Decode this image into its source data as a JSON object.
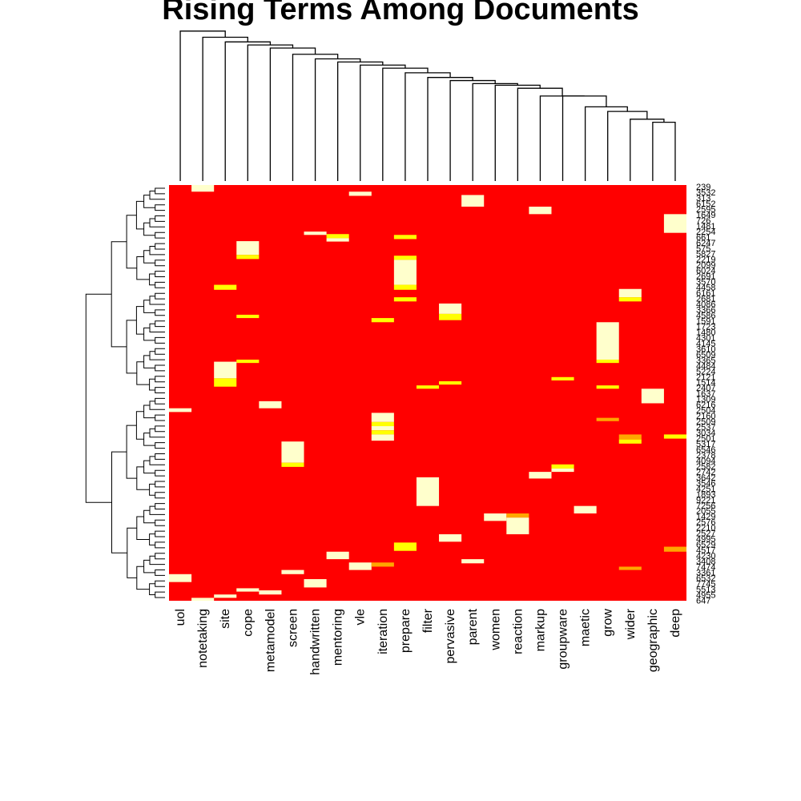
{
  "title": "Rising Terms Among Documents",
  "chart_data": {
    "type": "heatmap",
    "title": "Rising Terms Among Documents",
    "colors": {
      "low": "#ff0000",
      "mid_low": "#ff4500",
      "mid": "#ffa500",
      "high": "#ffff00",
      "max": "#ffffcc"
    },
    "columns": [
      "uol",
      "notetaking",
      "site",
      "cope",
      "metamodel",
      "screen",
      "handwritten",
      "mentoring",
      "vle",
      "iteration",
      "prepare",
      "filter",
      "pervasive",
      "parent",
      "women",
      "reaction",
      "markup",
      "groupware",
      "maetic",
      "grow",
      "wider",
      "geographic",
      "deep"
    ],
    "row_labels": [
      "239",
      "3532",
      "313",
      "6152",
      "2595",
      "1649",
      "726",
      "1481",
      "2254",
      "661",
      "6247",
      "575",
      "5827",
      "2219",
      "2099",
      "6024",
      "2691",
      "3570",
      "4458",
      "6161",
      "2681",
      "4086",
      "3366",
      "4586",
      "1591",
      "1723",
      "1480",
      "4301",
      "4145",
      "3610",
      "6509",
      "3365",
      "4484",
      "5224",
      "2121",
      "1514",
      "2407",
      "1637",
      "1309",
      "6216",
      "2504",
      "2160",
      "2509",
      "2537",
      "3034",
      "2501",
      "5317",
      "6546",
      "2378",
      "4094",
      "2582",
      "2742",
      "3642",
      "3546",
      "4251",
      "1893",
      "9221",
      "7256",
      "2055",
      "1429",
      "2576",
      "2210",
      "2527",
      "4995",
      "6529",
      "4517",
      "4230",
      "3408",
      "7474",
      "3361",
      "6532",
      "7745",
      "5513",
      "4955",
      "647"
    ],
    "background_value": 0,
    "cells": [
      {
        "column": "notetaking",
        "from": 0.0,
        "to": 0.016,
        "value": 4
      },
      {
        "column": "vle",
        "from": 0.016,
        "to": 0.026,
        "value": 4
      },
      {
        "column": "parent",
        "from": 0.024,
        "to": 0.052,
        "value": 4
      },
      {
        "column": "markup",
        "from": 0.052,
        "to": 0.07,
        "value": 4
      },
      {
        "column": "deep",
        "from": 0.07,
        "to": 0.115,
        "value": 4
      },
      {
        "column": "handwritten",
        "from": 0.112,
        "to": 0.12,
        "value": 4
      },
      {
        "column": "mentoring",
        "from": 0.118,
        "to": 0.128,
        "value": 3
      },
      {
        "column": "mentoring",
        "from": 0.128,
        "to": 0.136,
        "value": 4
      },
      {
        "column": "prepare",
        "from": 0.12,
        "to": 0.13,
        "value": 3
      },
      {
        "column": "cope",
        "from": 0.135,
        "to": 0.168,
        "value": 4
      },
      {
        "column": "cope",
        "from": 0.168,
        "to": 0.178,
        "value": 3
      },
      {
        "column": "prepare",
        "from": 0.17,
        "to": 0.18,
        "value": 3
      },
      {
        "column": "prepare",
        "from": 0.18,
        "to": 0.24,
        "value": 4
      },
      {
        "column": "prepare",
        "from": 0.24,
        "to": 0.252,
        "value": 3
      },
      {
        "column": "site",
        "from": 0.24,
        "to": 0.252,
        "value": 3
      },
      {
        "column": "wider",
        "from": 0.25,
        "to": 0.27,
        "value": 4
      },
      {
        "column": "wider",
        "from": 0.27,
        "to": 0.28,
        "value": 3
      },
      {
        "column": "prepare",
        "from": 0.27,
        "to": 0.28,
        "value": 3
      },
      {
        "column": "pervasive",
        "from": 0.285,
        "to": 0.31,
        "value": 4
      },
      {
        "column": "pervasive",
        "from": 0.31,
        "to": 0.325,
        "value": 3
      },
      {
        "column": "cope",
        "from": 0.312,
        "to": 0.32,
        "value": 3
      },
      {
        "column": "iteration",
        "from": 0.32,
        "to": 0.33,
        "value": 3
      },
      {
        "column": "grow",
        "from": 0.33,
        "to": 0.42,
        "value": 4
      },
      {
        "column": "grow",
        "from": 0.42,
        "to": 0.428,
        "value": 3
      },
      {
        "column": "cope",
        "from": 0.42,
        "to": 0.428,
        "value": 3
      },
      {
        "column": "site",
        "from": 0.425,
        "to": 0.465,
        "value": 4
      },
      {
        "column": "site",
        "from": 0.465,
        "to": 0.485,
        "value": 3
      },
      {
        "column": "groupware",
        "from": 0.462,
        "to": 0.47,
        "value": 3
      },
      {
        "column": "pervasive",
        "from": 0.472,
        "to": 0.48,
        "value": 3
      },
      {
        "column": "filter",
        "from": 0.482,
        "to": 0.49,
        "value": 3
      },
      {
        "column": "grow",
        "from": 0.482,
        "to": 0.49,
        "value": 3
      },
      {
        "column": "geographic",
        "from": 0.49,
        "to": 0.525,
        "value": 4
      },
      {
        "column": "metamodel",
        "from": 0.52,
        "to": 0.537,
        "value": 4
      },
      {
        "column": "uol",
        "from": 0.537,
        "to": 0.546,
        "value": 4
      },
      {
        "column": "iteration",
        "from": 0.548,
        "to": 0.57,
        "value": 4
      },
      {
        "column": "iteration",
        "from": 0.57,
        "to": 0.58,
        "value": 3
      },
      {
        "column": "iteration",
        "from": 0.58,
        "to": 0.59,
        "value": 4
      },
      {
        "column": "iteration",
        "from": 0.59,
        "to": 0.6,
        "value": 3
      },
      {
        "column": "iteration",
        "from": 0.6,
        "to": 0.615,
        "value": 4
      },
      {
        "column": "grow",
        "from": 0.56,
        "to": 0.568,
        "value": 2
      },
      {
        "column": "wider",
        "from": 0.6,
        "to": 0.612,
        "value": 2
      },
      {
        "column": "wider",
        "from": 0.612,
        "to": 0.622,
        "value": 3
      },
      {
        "column": "deep",
        "from": 0.6,
        "to": 0.61,
        "value": 3
      },
      {
        "column": "screen",
        "from": 0.617,
        "to": 0.668,
        "value": 4
      },
      {
        "column": "screen",
        "from": 0.668,
        "to": 0.678,
        "value": 3
      },
      {
        "column": "groupware",
        "from": 0.672,
        "to": 0.682,
        "value": 3
      },
      {
        "column": "groupware",
        "from": 0.682,
        "to": 0.69,
        "value": 4
      },
      {
        "column": "markup",
        "from": 0.69,
        "to": 0.706,
        "value": 4
      },
      {
        "column": "filter",
        "from": 0.703,
        "to": 0.772,
        "value": 4
      },
      {
        "column": "maetic",
        "from": 0.772,
        "to": 0.79,
        "value": 4
      },
      {
        "column": "women",
        "from": 0.79,
        "to": 0.808,
        "value": 4
      },
      {
        "column": "reaction",
        "from": 0.79,
        "to": 0.8,
        "value": 2
      },
      {
        "column": "reaction",
        "from": 0.8,
        "to": 0.84,
        "value": 4
      },
      {
        "column": "pervasive",
        "from": 0.84,
        "to": 0.858,
        "value": 4
      },
      {
        "column": "prepare",
        "from": 0.86,
        "to": 0.88,
        "value": 3
      },
      {
        "column": "deep",
        "from": 0.87,
        "to": 0.882,
        "value": 2
      },
      {
        "column": "mentoring",
        "from": 0.882,
        "to": 0.9,
        "value": 4
      },
      {
        "column": "parent",
        "from": 0.9,
        "to": 0.91,
        "value": 4
      },
      {
        "column": "vle",
        "from": 0.908,
        "to": 0.926,
        "value": 4
      },
      {
        "column": "iteration",
        "from": 0.908,
        "to": 0.918,
        "value": 2
      },
      {
        "column": "wider",
        "from": 0.918,
        "to": 0.926,
        "value": 2
      },
      {
        "column": "screen",
        "from": 0.926,
        "to": 0.936,
        "value": 4
      },
      {
        "column": "uol",
        "from": 0.936,
        "to": 0.955,
        "value": 4
      },
      {
        "column": "handwritten",
        "from": 0.948,
        "to": 0.968,
        "value": 4
      },
      {
        "column": "cope",
        "from": 0.97,
        "to": 0.978,
        "value": 4
      },
      {
        "column": "metamodel",
        "from": 0.975,
        "to": 0.985,
        "value": 4
      },
      {
        "column": "site",
        "from": 0.985,
        "to": 0.993,
        "value": 4
      },
      {
        "column": "notetaking",
        "from": 0.993,
        "to": 1.0,
        "value": 4
      }
    ],
    "column_dendrogram": [
      [
        0,
        1,
        0.9
      ],
      [
        2,
        3,
        0.84
      ],
      [
        4,
        5,
        0.82
      ],
      [
        6,
        7,
        0.8
      ],
      [
        8,
        9,
        0.78
      ],
      [
        10,
        11,
        0.76
      ],
      [
        12,
        13,
        0.73
      ],
      [
        14,
        15,
        0.71
      ],
      [
        16,
        17,
        0.69
      ],
      [
        18,
        19,
        0.67
      ],
      [
        20,
        21,
        0.65
      ],
      [
        22,
        23,
        0.63
      ],
      [
        24,
        25,
        0.61
      ],
      [
        26,
        27,
        0.59
      ],
      [
        28,
        29,
        0.57
      ],
      [
        30,
        31,
        0.55
      ],
      [
        32,
        33,
        0.52
      ],
      [
        34,
        35,
        0.5
      ],
      [
        36,
        37,
        0.48
      ],
      [
        38,
        39,
        0.46
      ],
      [
        40,
        41,
        0.44
      ],
      [
        42,
        43,
        0.42
      ]
    ]
  }
}
